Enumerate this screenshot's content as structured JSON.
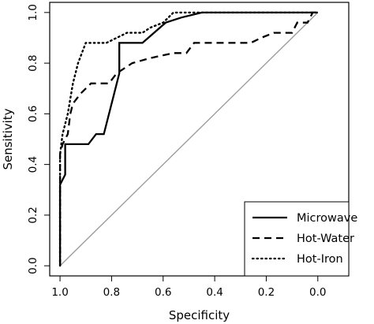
{
  "chart_data": {
    "type": "line",
    "title": "",
    "xlabel": "Specificity",
    "ylabel": "Sensitivity",
    "x_reversed": true,
    "xlim": [
      1.04,
      -0.12
    ],
    "ylim": [
      -0.04,
      1.04
    ],
    "xticks": [
      1.0,
      0.8,
      0.6,
      0.4,
      0.2,
      0.0
    ],
    "xtick_labels": [
      "1.0",
      "0.8",
      "0.6",
      "0.4",
      "0.2",
      "0.0"
    ],
    "yticks": [
      0.0,
      0.2,
      0.4,
      0.6,
      0.8,
      1.0
    ],
    "ytick_labels": [
      "0.0",
      "0.2",
      "0.4",
      "0.6",
      "0.8",
      "1.0"
    ],
    "grid": false,
    "legend_position": "bottom-right",
    "reference_line": {
      "from": [
        1.0,
        0.0
      ],
      "to": [
        0.0,
        1.0
      ],
      "color": "#999999"
    },
    "series": [
      {
        "name": "Microwave",
        "line_style": "solid",
        "color": "#000000",
        "x": [
          1.0,
          1.0,
          0.98,
          0.98,
          0.97,
          0.97,
          0.89,
          0.86,
          0.83,
          0.79,
          0.77,
          0.77,
          0.68,
          0.59,
          0.53,
          0.45,
          0.02,
          0.0
        ],
        "y": [
          0.0,
          0.32,
          0.36,
          0.48,
          0.48,
          0.48,
          0.48,
          0.52,
          0.52,
          0.68,
          0.76,
          0.88,
          0.88,
          0.96,
          0.98,
          1.0,
          1.0,
          1.0
        ]
      },
      {
        "name": "Hot-Water",
        "line_style": "dashed",
        "color": "#000000",
        "x": [
          1.0,
          1.0,
          0.99,
          0.97,
          0.96,
          0.95,
          0.92,
          0.88,
          0.81,
          0.78,
          0.72,
          0.65,
          0.56,
          0.51,
          0.48,
          0.45,
          0.35,
          0.26,
          0.22,
          0.17,
          0.1,
          0.08,
          0.07,
          0.04,
          0.03,
          0.02,
          0.01,
          0.0
        ],
        "y": [
          0.0,
          0.44,
          0.48,
          0.52,
          0.6,
          0.64,
          0.68,
          0.72,
          0.72,
          0.76,
          0.8,
          0.82,
          0.84,
          0.84,
          0.88,
          0.88,
          0.88,
          0.88,
          0.9,
          0.92,
          0.92,
          0.96,
          0.96,
          0.96,
          0.98,
          1.0,
          1.0,
          1.0
        ]
      },
      {
        "name": "Hot-Iron",
        "line_style": "dotted",
        "color": "#000000",
        "x": [
          1.0,
          1.0,
          0.99,
          0.97,
          0.95,
          0.93,
          0.9,
          0.87,
          0.82,
          0.78,
          0.74,
          0.68,
          0.65,
          0.6,
          0.56,
          0.51,
          0.45,
          0.02,
          0.0
        ],
        "y": [
          0.0,
          0.44,
          0.52,
          0.6,
          0.72,
          0.8,
          0.88,
          0.88,
          0.88,
          0.9,
          0.92,
          0.92,
          0.94,
          0.96,
          1.0,
          1.0,
          1.0,
          1.0,
          1.0
        ]
      }
    ]
  }
}
